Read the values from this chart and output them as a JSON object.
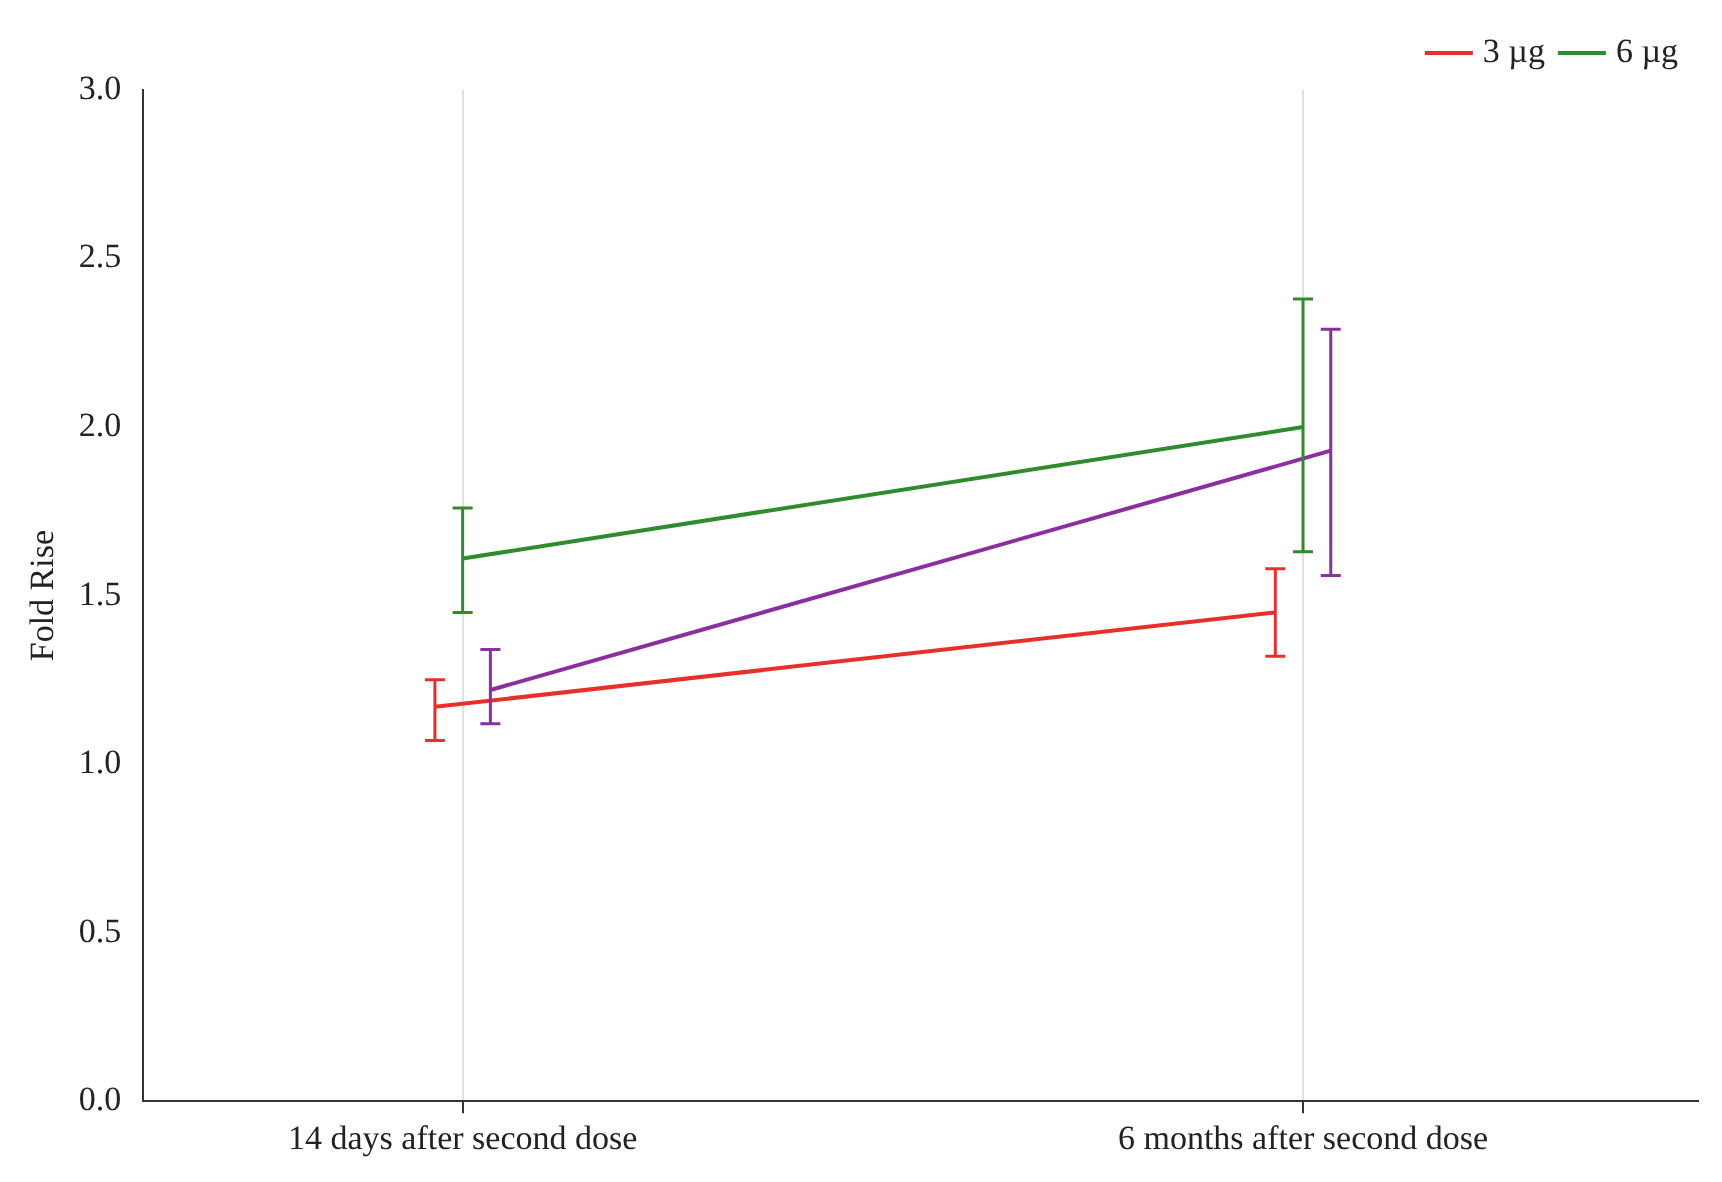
{
  "chart_data": {
    "type": "line",
    "ylabel": "Fold Rise",
    "categories": [
      "14 days after second dose",
      "6 months after second dose"
    ],
    "series": [
      {
        "name": "3 µg",
        "color": "#e8302a",
        "values": [
          1.17,
          1.45
        ],
        "errors": [
          [
            1.07,
            1.25
          ],
          [
            1.32,
            1.58
          ]
        ]
      },
      {
        "name": "6 µg",
        "color": "#2e8b2e",
        "values": [
          1.61,
          2.0
        ],
        "errors": [
          [
            1.45,
            1.76
          ],
          [
            1.63,
            2.38
          ]
        ]
      },
      {
        "color": "#8b2fa0",
        "values": [
          1.22,
          1.93
        ],
        "errors": [
          [
            1.12,
            1.34
          ],
          [
            1.56,
            2.29
          ]
        ]
      }
    ],
    "ylim": [
      0,
      3
    ],
    "yticks": [
      {
        "value": 0,
        "label": "0.0"
      },
      {
        "value": 0.5,
        "label": "0.5"
      },
      {
        "value": 1,
        "label": "1.0"
      },
      {
        "value": 1.5,
        "label": "1.5"
      },
      {
        "value": 2,
        "label": "2.0"
      },
      {
        "value": 2.5,
        "label": "2.5"
      },
      {
        "value": 3,
        "label": "3.0"
      }
    ],
    "grid": "x",
    "legend": "top right",
    "marker": "none"
  }
}
